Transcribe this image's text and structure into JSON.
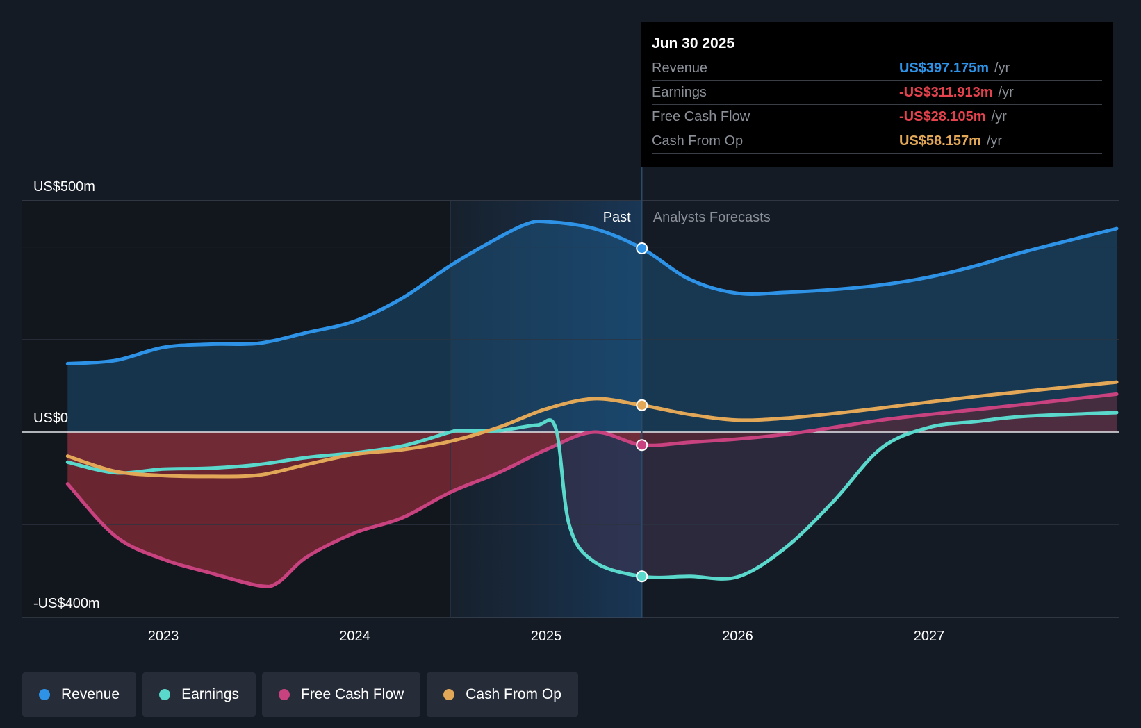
{
  "chart_data": {
    "type": "line",
    "title": "",
    "xlabel": "",
    "ylabel": "",
    "y_axis_labels": [
      "US$500m",
      "US$0",
      "-US$400m"
    ],
    "ylim": [
      -400,
      500
    ],
    "x_ticks": [
      {
        "label": "2023",
        "value": 2023
      },
      {
        "label": "2024",
        "value": 2024
      },
      {
        "label": "2025",
        "value": 2025
      },
      {
        "label": "2026",
        "value": 2026
      },
      {
        "label": "2027",
        "value": 2027
      }
    ],
    "xlim": [
      2022.26,
      2027.98
    ],
    "highlight_start": 2024.5,
    "divider": 2025.5,
    "past_label": "Past",
    "forecast_label": "Analysts Forecasts",
    "series": [
      {
        "name": "Revenue",
        "color": "#2e93e6",
        "fill": "above",
        "fill_color": "#1c5a8a",
        "x": [
          2022.5,
          2022.75,
          2023.0,
          2023.25,
          2023.5,
          2023.75,
          2024.0,
          2024.25,
          2024.5,
          2024.75,
          2024.9,
          2025.0,
          2025.25,
          2025.5,
          2025.75,
          2026.0,
          2026.25,
          2026.5,
          2026.75,
          2027.0,
          2027.25,
          2027.5,
          2027.98
        ],
        "values": [
          148,
          155,
          183,
          190,
          192,
          215,
          240,
          290,
          360,
          420,
          450,
          455,
          440,
          397,
          330,
          300,
          302,
          308,
          318,
          335,
          360,
          390,
          440
        ]
      },
      {
        "name": "Earnings",
        "color": "#5ad8cc",
        "fill": "below",
        "fill_color": "#403552",
        "x": [
          2022.5,
          2022.75,
          2023.0,
          2023.25,
          2023.5,
          2023.75,
          2024.0,
          2024.25,
          2024.5,
          2024.55,
          2024.75,
          2024.95,
          2025.05,
          2025.12,
          2025.25,
          2025.5,
          2025.75,
          2026.0,
          2026.25,
          2026.5,
          2026.75,
          2027.0,
          2027.25,
          2027.5,
          2027.98
        ],
        "values": [
          -65,
          -88,
          -80,
          -78,
          -70,
          -55,
          -45,
          -30,
          0,
          3,
          3,
          15,
          8,
          -200,
          -280,
          -312,
          -312,
          -313,
          -250,
          -150,
          -35,
          10,
          23,
          34,
          42
        ]
      },
      {
        "name": "Free Cash Flow",
        "color": "#c8427f",
        "fill": "below",
        "fill_color": "#6b2633",
        "x": [
          2022.5,
          2022.75,
          2023.0,
          2023.25,
          2023.5,
          2023.6,
          2023.75,
          2024.0,
          2024.25,
          2024.5,
          2024.75,
          2025.0,
          2025.25,
          2025.5,
          2025.75,
          2026.0,
          2026.25,
          2026.5,
          2026.75,
          2027.0,
          2027.25,
          2027.5,
          2027.98
        ],
        "values": [
          -112,
          -225,
          -275,
          -305,
          -332,
          -325,
          -270,
          -218,
          -185,
          -130,
          -88,
          -38,
          0,
          -28,
          -22,
          -15,
          -5,
          10,
          26,
          38,
          49,
          60,
          82
        ]
      },
      {
        "name": "Cash From Op",
        "color": "#e3a857",
        "fill": "none",
        "fill_color": "",
        "x": [
          2022.5,
          2022.75,
          2023.0,
          2023.25,
          2023.5,
          2023.75,
          2024.0,
          2024.25,
          2024.5,
          2024.75,
          2025.0,
          2025.25,
          2025.5,
          2025.75,
          2026.0,
          2026.25,
          2026.5,
          2026.75,
          2027.0,
          2027.25,
          2027.5,
          2027.98
        ],
        "values": [
          -52,
          -85,
          -94,
          -96,
          -93,
          -70,
          -48,
          -38,
          -20,
          10,
          50,
          72,
          58,
          38,
          26,
          30,
          40,
          52,
          65,
          77,
          88,
          108
        ]
      }
    ],
    "markers": [
      {
        "series": "Revenue",
        "x": 2025.5,
        "value": 397.175
      },
      {
        "series": "Cash From Op",
        "x": 2025.5,
        "value": 58.157
      },
      {
        "series": "Free Cash Flow",
        "x": 2025.5,
        "value": -28.105
      },
      {
        "series": "Earnings",
        "x": 2025.5,
        "value": -311.913
      }
    ]
  },
  "tooltip": {
    "date": "Jun 30 2025",
    "rows": [
      {
        "label": "Revenue",
        "value": "US$397.175m",
        "unit": "/yr",
        "color": "#2e93e6"
      },
      {
        "label": "Earnings",
        "value": "-US$311.913m",
        "unit": "/yr",
        "color": "#e5424d"
      },
      {
        "label": "Free Cash Flow",
        "value": "-US$28.105m",
        "unit": "/yr",
        "color": "#e5424d"
      },
      {
        "label": "Cash From Op",
        "value": "US$58.157m",
        "unit": "/yr",
        "color": "#e3a857"
      }
    ]
  },
  "legend": {
    "items": [
      {
        "label": "Revenue",
        "color": "#2e93e6"
      },
      {
        "label": "Earnings",
        "color": "#5ad8cc"
      },
      {
        "label": "Free Cash Flow",
        "color": "#c8427f"
      },
      {
        "label": "Cash From Op",
        "color": "#e3a857"
      }
    ]
  }
}
